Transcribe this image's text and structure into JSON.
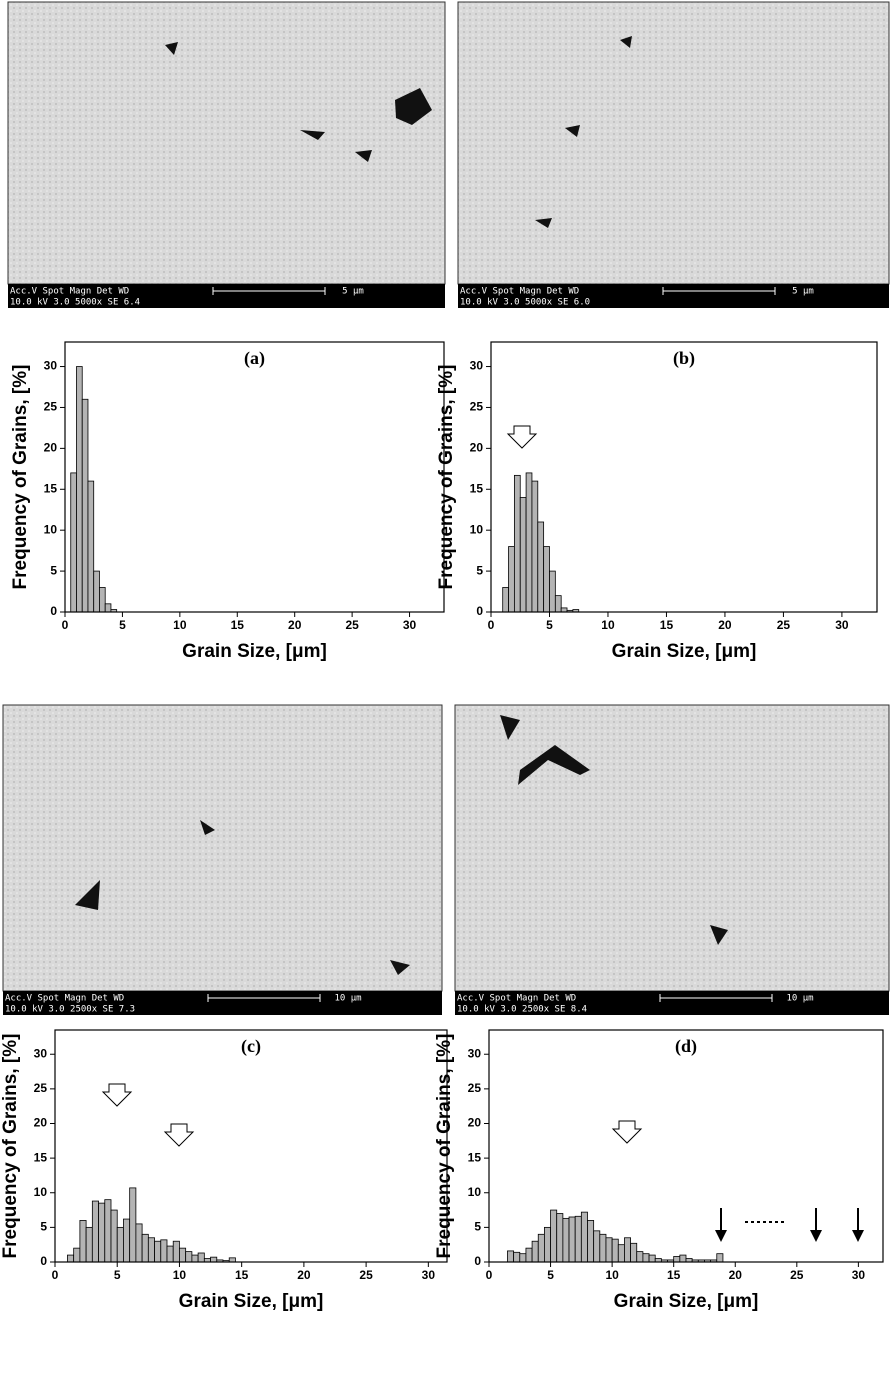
{
  "chart_data": [
    {
      "type": "histogram",
      "title": "(a)",
      "xlabel": "Grain Size, [μm]",
      "ylabel": "Frequency of Grains, [%]",
      "bins": [
        0.5,
        1,
        1.5,
        2,
        2.5,
        3,
        3.5,
        4,
        4.5
      ],
      "values": [
        17,
        30,
        26,
        16,
        5,
        3,
        1,
        0.3
      ],
      "color": "#b4b4b4",
      "xlim": [
        0,
        33
      ],
      "ylim": [
        0,
        33
      ],
      "xticks": [
        0,
        5,
        10,
        15,
        20,
        25,
        30
      ],
      "yticks": [
        0,
        5,
        10,
        15,
        20,
        25,
        30
      ]
    },
    {
      "type": "histogram",
      "title": "(b)",
      "xlabel": "Grain Size, [μm]",
      "ylabel": "Frequency of Grains, [%]",
      "bins": [
        1,
        1.5,
        2,
        2.5,
        3,
        3.5,
        4,
        4.5,
        5,
        5.5,
        6,
        6.5,
        7,
        7.5
      ],
      "values": [
        3,
        8,
        16.7,
        14,
        17,
        16,
        11,
        8,
        5,
        2,
        0.5,
        0.2,
        0.3
      ],
      "color": "#b4b4b4",
      "xlim": [
        0,
        33
      ],
      "ylim": [
        0,
        33
      ],
      "xticks": [
        0,
        5,
        10,
        15,
        20,
        25,
        30
      ],
      "yticks": [
        0,
        5,
        10,
        15,
        20,
        25,
        30
      ]
    },
    {
      "type": "histogram",
      "title": "(c)",
      "xlabel": "Grain Size, [μm]",
      "ylabel": "Frequency of Grains, [%]",
      "bins": [
        1,
        1.5,
        2,
        2.5,
        3,
        3.5,
        4,
        4.5,
        5,
        5.5,
        6,
        6.5,
        7,
        7.5,
        8,
        8.5,
        9,
        9.5,
        10,
        10.5,
        11,
        11.5,
        12,
        12.5,
        13,
        13.5,
        14,
        14.5
      ],
      "values": [
        1,
        2,
        6,
        5,
        8.8,
        8.5,
        9,
        7.5,
        5,
        6.2,
        10.7,
        5.5,
        4,
        3.5,
        3,
        3.2,
        2.3,
        3,
        2,
        1.5,
        1,
        1.3,
        0.5,
        0.7,
        0.3,
        0.2,
        0.6
      ],
      "color": "#b4b4b4",
      "xlim": [
        0,
        31.5
      ],
      "ylim": [
        0,
        33.5
      ],
      "xticks": [
        0,
        5,
        10,
        15,
        20,
        25,
        30
      ],
      "yticks": [
        0,
        5,
        10,
        15,
        20,
        25,
        30
      ]
    },
    {
      "type": "histogram",
      "title": "(d)",
      "xlabel": "Grain Size, [μm]",
      "ylabel": "Frequency of Grains, [%]",
      "bins": [
        1.5,
        2,
        2.5,
        3,
        3.5,
        4,
        4.5,
        5,
        5.5,
        6,
        6.5,
        7,
        7.5,
        8,
        8.5,
        9,
        9.5,
        10,
        10.5,
        11,
        11.5,
        12,
        12.5,
        13,
        13.5,
        14,
        14.5,
        15,
        15.5,
        16,
        16.5,
        17,
        17.5,
        18,
        18.5,
        19
      ],
      "values": [
        1.6,
        1.4,
        1.2,
        2,
        3,
        4,
        5,
        7.5,
        7,
        6.3,
        6.5,
        6.6,
        7.2,
        6,
        4.5,
        4,
        3.5,
        3.3,
        2.5,
        3.5,
        2.7,
        1.5,
        1.2,
        1,
        0.5,
        0.3,
        0.3,
        0.8,
        1,
        0.5,
        0.3,
        0.3,
        0.3,
        0.3,
        1.2
      ],
      "color": "#b4b4b4",
      "xlim": [
        0,
        32
      ],
      "ylim": [
        0,
        33.5
      ],
      "xticks": [
        0,
        5,
        10,
        15,
        20,
        25,
        30
      ],
      "yticks": [
        0,
        5,
        10,
        15,
        20,
        25,
        30
      ]
    }
  ],
  "images": [
    {
      "info_top": "Acc.V  Spot Magn   Det  WD",
      "info_bottom": "10.0 kV 3.0  5000x   SE   6.4",
      "scale": "5 μm"
    },
    {
      "info_top": "Acc.V  Spot Magn   Det  WD",
      "info_bottom": "10.0 kV 3.0  5000x   SE   6.0",
      "scale": "5 μm"
    },
    {
      "info_top": "Acc.V  Spot Magn   Det  WD",
      "info_bottom": "10.0 kV 3.0  2500x   SE   7.3",
      "scale": "10 μm"
    },
    {
      "info_top": "Acc.V  Spot Magn   Det  WD",
      "info_bottom": "10.0 kV 3.0  2500x   SE   8.4",
      "scale": "10 μm"
    }
  ]
}
